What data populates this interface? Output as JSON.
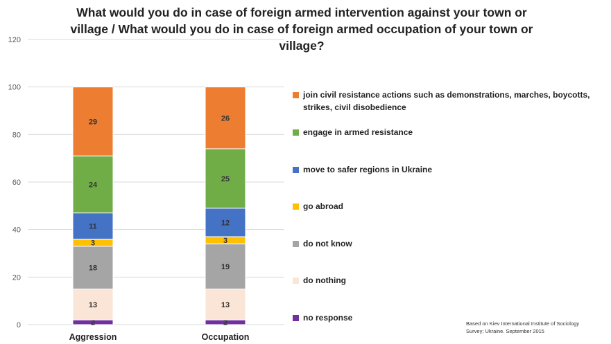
{
  "chart_data": {
    "type": "bar",
    "stacked": true,
    "title": "What would you do in case of foreign armed intervention against your town or village / What would you do in case of foreign armed occupation of your town or village?",
    "categories": [
      "Aggression",
      "Occupation"
    ],
    "ylim": [
      0,
      120
    ],
    "yticks": [
      0,
      20,
      40,
      60,
      80,
      100,
      120
    ],
    "grid": true,
    "legend_position": "right",
    "series": [
      {
        "name": "no response",
        "values": [
          2,
          2
        ],
        "color": "#7030A0"
      },
      {
        "name": "do nothing",
        "values": [
          13,
          13
        ],
        "color": "#FBE5D6"
      },
      {
        "name": "do not know",
        "values": [
          18,
          19
        ],
        "color": "#A5A5A5"
      },
      {
        "name": "go abroad",
        "values": [
          3,
          3
        ],
        "color": "#FFC000"
      },
      {
        "name": "move to safer regions in Ukraine",
        "values": [
          11,
          12
        ],
        "color": "#4472C4"
      },
      {
        "name": "engage in armed resistance",
        "values": [
          24,
          25
        ],
        "color": "#70AD47"
      },
      {
        "name": "join civil resistance actions such as demonstrations, marches, boycotts, strikes, civil disobedience",
        "values": [
          29,
          26
        ],
        "color": "#ED7D31"
      }
    ]
  },
  "legend_order": [
    6,
    5,
    4,
    3,
    2,
    1,
    0
  ],
  "source_note": "Based on Kiev International Institute of Sociology Survey; Ukraine. September 2015"
}
